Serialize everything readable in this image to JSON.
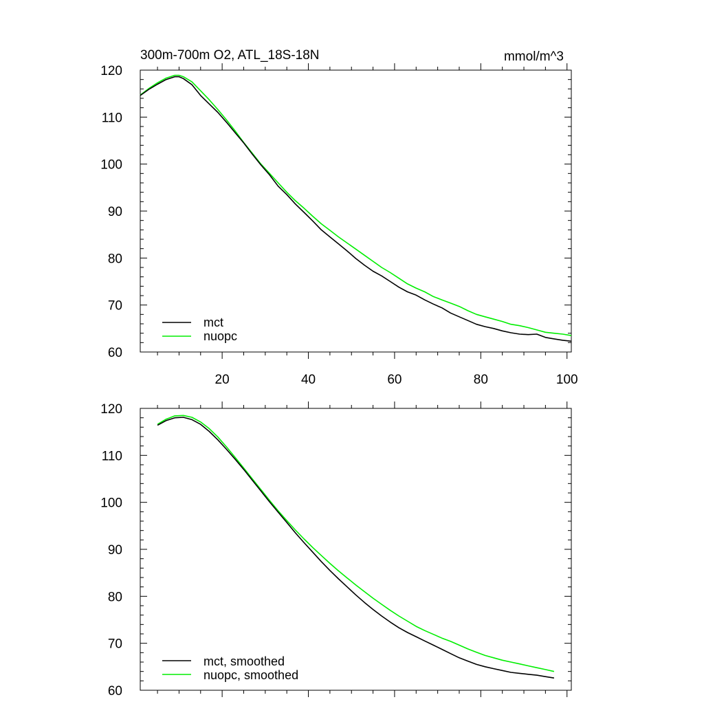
{
  "chart_data": [
    {
      "type": "line",
      "title": "300m-700m O2, ATL_18S-18N",
      "units": "mmol/m^3",
      "xlabel": "",
      "ylabel": "",
      "xlim": [
        1,
        101
      ],
      "ylim": [
        60,
        120
      ],
      "x_ticks": [
        20,
        40,
        60,
        80,
        100
      ],
      "x_tick_labels": [
        "20",
        "40",
        "60",
        "80",
        "100"
      ],
      "y_ticks": [
        60,
        70,
        80,
        90,
        100,
        110,
        120
      ],
      "y_tick_labels": [
        "60",
        "70",
        "80",
        "90",
        "100",
        "110",
        "120"
      ],
      "legend_position": "bottom-left",
      "series": [
        {
          "name": "mct",
          "color": "#000000",
          "x": [
            1,
            3,
            5,
            7,
            9,
            10,
            11,
            13,
            15,
            17,
            19,
            21,
            23,
            25,
            27,
            29,
            31,
            33,
            35,
            37,
            39,
            41,
            43,
            45,
            47,
            49,
            51,
            53,
            55,
            57,
            59,
            61,
            63,
            65,
            67,
            69,
            71,
            73,
            75,
            77,
            79,
            81,
            83,
            85,
            87,
            89,
            91,
            93,
            95,
            97,
            99,
            101
          ],
          "values": [
            114.6,
            115.9,
            117.0,
            118.0,
            118.6,
            118.6,
            118.2,
            116.9,
            114.6,
            112.8,
            111.0,
            108.9,
            106.7,
            104.5,
            102.1,
            99.8,
            97.7,
            95.3,
            93.5,
            91.5,
            89.7,
            87.9,
            86.0,
            84.5,
            83.0,
            81.5,
            79.9,
            78.5,
            77.2,
            76.2,
            75.0,
            73.8,
            72.8,
            72.1,
            71.1,
            70.2,
            69.4,
            68.3,
            67.5,
            66.7,
            65.9,
            65.4,
            65.0,
            64.5,
            64.1,
            63.8,
            63.7,
            63.8,
            63.1,
            62.8,
            62.5,
            62.3
          ]
        },
        {
          "name": "nuopc",
          "color": "#00ee00",
          "x": [
            1,
            3,
            5,
            7,
            9,
            10,
            11,
            13,
            15,
            17,
            19,
            21,
            23,
            25,
            27,
            29,
            31,
            33,
            35,
            37,
            39,
            41,
            43,
            45,
            47,
            49,
            51,
            53,
            55,
            57,
            59,
            61,
            63,
            65,
            67,
            69,
            71,
            73,
            75,
            77,
            79,
            81,
            83,
            85,
            87,
            89,
            91,
            93,
            95,
            97,
            99,
            101
          ],
          "values": [
            114.7,
            116.1,
            117.3,
            118.3,
            118.9,
            118.9,
            118.6,
            117.5,
            115.6,
            113.7,
            111.6,
            109.4,
            107.1,
            104.6,
            102.3,
            100.0,
            98.0,
            96.0,
            94.0,
            92.2,
            90.6,
            88.9,
            87.3,
            85.9,
            84.5,
            83.2,
            81.9,
            80.6,
            79.3,
            78.0,
            76.9,
            75.7,
            74.5,
            73.6,
            72.8,
            71.8,
            71.1,
            70.4,
            69.7,
            68.8,
            68.0,
            67.5,
            67.0,
            66.5,
            65.9,
            65.6,
            65.2,
            64.7,
            64.2,
            64.0,
            63.8,
            63.5
          ]
        }
      ]
    },
    {
      "type": "line",
      "title": "",
      "xlabel": "",
      "ylabel": "",
      "xlim": [
        1,
        101
      ],
      "ylim": [
        60,
        120
      ],
      "x_ticks": [
        20,
        40,
        60,
        80,
        100
      ],
      "x_tick_labels": [],
      "y_ticks": [
        60,
        70,
        80,
        90,
        100,
        110,
        120
      ],
      "y_tick_labels": [
        "60",
        "70",
        "80",
        "90",
        "100",
        "110",
        "120"
      ],
      "legend_position": "bottom-left",
      "series": [
        {
          "name": "mct, smoothed",
          "color": "#000000",
          "x": [
            5,
            7,
            9,
            11,
            13,
            15,
            17,
            19,
            21,
            23,
            25,
            27,
            29,
            31,
            33,
            35,
            37,
            39,
            41,
            43,
            45,
            47,
            49,
            51,
            53,
            55,
            57,
            59,
            61,
            63,
            65,
            67,
            69,
            71,
            73,
            75,
            77,
            79,
            81,
            83,
            85,
            87,
            89,
            91,
            93,
            95,
            97
          ],
          "values": [
            116.4,
            117.4,
            118.0,
            118.1,
            117.6,
            116.6,
            115.1,
            113.3,
            111.3,
            109.2,
            107.0,
            104.7,
            102.4,
            100.1,
            97.9,
            95.7,
            93.5,
            91.4,
            89.4,
            87.4,
            85.5,
            83.7,
            82.0,
            80.3,
            78.7,
            77.2,
            75.8,
            74.5,
            73.3,
            72.3,
            71.4,
            70.5,
            69.6,
            68.7,
            67.8,
            66.9,
            66.2,
            65.5,
            65.0,
            64.6,
            64.2,
            63.8,
            63.6,
            63.4,
            63.2,
            62.9,
            62.6
          ]
        },
        {
          "name": "nuopc, smoothed",
          "color": "#00ee00",
          "x": [
            5,
            7,
            9,
            11,
            13,
            15,
            17,
            19,
            21,
            23,
            25,
            27,
            29,
            31,
            33,
            35,
            37,
            39,
            41,
            43,
            45,
            47,
            49,
            51,
            53,
            55,
            57,
            59,
            61,
            63,
            65,
            67,
            69,
            71,
            73,
            75,
            77,
            79,
            81,
            83,
            85,
            87,
            89,
            91,
            93,
            95,
            97
          ],
          "values": [
            116.6,
            117.7,
            118.4,
            118.5,
            118.1,
            117.1,
            115.7,
            113.9,
            111.8,
            109.6,
            107.3,
            105.0,
            102.7,
            100.4,
            98.2,
            96.1,
            94.1,
            92.2,
            90.4,
            88.7,
            87.0,
            85.4,
            83.9,
            82.4,
            81.0,
            79.6,
            78.3,
            77.0,
            75.8,
            74.7,
            73.6,
            72.7,
            71.9,
            71.1,
            70.4,
            69.6,
            68.8,
            68.1,
            67.4,
            66.9,
            66.4,
            66.0,
            65.6,
            65.2,
            64.8,
            64.4,
            64.0
          ]
        }
      ]
    }
  ]
}
